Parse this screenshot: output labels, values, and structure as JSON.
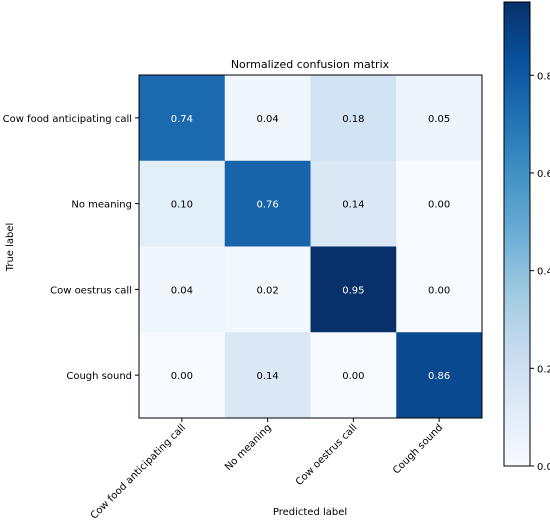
{
  "chart_data": {
    "type": "heatmap",
    "title": "Normalized confusion matrix",
    "xlabel": "Predicted label",
    "ylabel": "True label",
    "x_categories": [
      "Cow food anticipating call",
      "No meaning",
      "Cow oestrus call",
      "Cough sound"
    ],
    "y_categories": [
      "Cow food anticipating call",
      "No meaning",
      "Cow oestrus call",
      "Cough sound"
    ],
    "values": [
      [
        0.74,
        0.04,
        0.18,
        0.05
      ],
      [
        0.1,
        0.76,
        0.14,
        0.0
      ],
      [
        0.04,
        0.02,
        0.95,
        0.0
      ],
      [
        0.0,
        0.14,
        0.0,
        0.86
      ]
    ],
    "value_labels": [
      [
        "0.74",
        "0.04",
        "0.18",
        "0.05"
      ],
      [
        "0.10",
        "0.76",
        "0.14",
        "0.00"
      ],
      [
        "0.04",
        "0.02",
        "0.95",
        "0.00"
      ],
      [
        "0.00",
        "0.14",
        "0.00",
        "0.86"
      ]
    ],
    "colormap": "Blues",
    "colorbar": {
      "range": [
        0,
        0.95
      ],
      "ticks": [
        0.0,
        0.2,
        0.4,
        0.6,
        0.8
      ],
      "tick_labels": [
        "0.0",
        "0.2",
        "0.4",
        "0.6",
        "0.8"
      ]
    },
    "grid": false
  }
}
